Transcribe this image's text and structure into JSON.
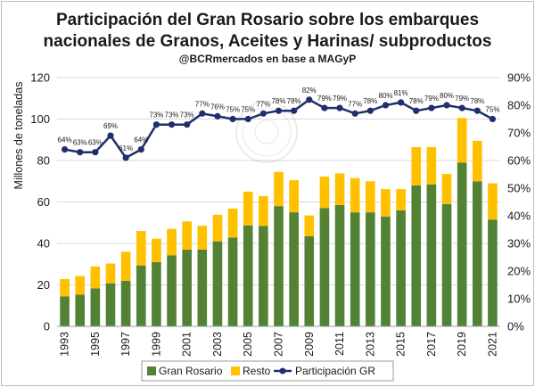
{
  "chart_data": {
    "type": "bar",
    "title_lines": [
      "Participación del Gran Rosario sobre los embarques",
      "nacionales de Granos, Aceites y Harinas/ subproductos"
    ],
    "subtitle": "@BCRmercados en base a MAGyP",
    "ylabel": "Millones de toneladas",
    "ylim": [
      0,
      120
    ],
    "yticks": [
      0,
      20,
      40,
      60,
      80,
      100,
      120
    ],
    "y2lim": [
      0,
      90
    ],
    "y2ticks": [
      "0%",
      "10%",
      "20%",
      "30%",
      "40%",
      "50%",
      "60%",
      "70%",
      "80%",
      "90%"
    ],
    "x": [
      1993,
      1994,
      1995,
      1996,
      1997,
      1998,
      1999,
      2000,
      2001,
      2002,
      2003,
      2004,
      2005,
      2006,
      2007,
      2008,
      2009,
      2010,
      2011,
      2012,
      2013,
      2014,
      2015,
      2016,
      2017,
      2018,
      2019,
      2020,
      2021
    ],
    "xtick_labels": [
      "1993",
      "1995",
      "1997",
      "1999",
      "2001",
      "2003",
      "2005",
      "2007",
      "2009",
      "2011",
      "2013",
      "2015",
      "2017",
      "2019",
      "2021"
    ],
    "series": [
      {
        "name": "Gran Rosario",
        "values": [
          14.5,
          15.3,
          18.3,
          20.8,
          22.0,
          29.4,
          31.0,
          34.3,
          37.0,
          37.0,
          41.0,
          42.8,
          48.7,
          48.5,
          58.0,
          55.0,
          43.5,
          57.0,
          58.5,
          55.0,
          55.0,
          53.0,
          56.0,
          68.0,
          68.5,
          59.0,
          79.0,
          70.0,
          51.5
        ]
      },
      {
        "name": "Resto",
        "values": [
          8.3,
          9.0,
          10.6,
          9.5,
          14.0,
          16.6,
          11.3,
          12.7,
          13.6,
          11.5,
          12.8,
          14.0,
          16.3,
          14.3,
          16.5,
          15.5,
          10.0,
          15.2,
          15.3,
          16.5,
          15.0,
          13.2,
          10.2,
          18.5,
          18.0,
          14.5,
          21.5,
          19.5,
          17.5
        ]
      },
      {
        "name": "Participación GR",
        "axis": "secondary",
        "values": [
          64,
          63,
          63,
          69,
          61,
          64,
          73,
          73,
          73,
          77,
          76,
          75,
          75,
          77,
          78,
          78,
          82,
          79,
          79,
          77,
          78,
          80,
          81,
          78,
          79,
          80,
          79,
          78,
          75
        ]
      }
    ],
    "point_labels": [
      "64%",
      "63%",
      "63%",
      "69%",
      "61%",
      "64%",
      "73%",
      "73%",
      "73%",
      "77%",
      "76%",
      "75%",
      "75%",
      "77%",
      "78%",
      "78%",
      "82%",
      "79%",
      "79%",
      "77%",
      "78%",
      "80%",
      "81%",
      "78%",
      "79%",
      "80%",
      "79%",
      "78%",
      "75%"
    ],
    "legend": [
      "Gran Rosario",
      "Resto",
      "Participación GR"
    ],
    "legend_position": "bottom",
    "colors": {
      "gran_rosario": "#548235",
      "resto": "#ffc000",
      "participacion": "#1f2f6b",
      "grid": "#d9d9d9"
    }
  }
}
